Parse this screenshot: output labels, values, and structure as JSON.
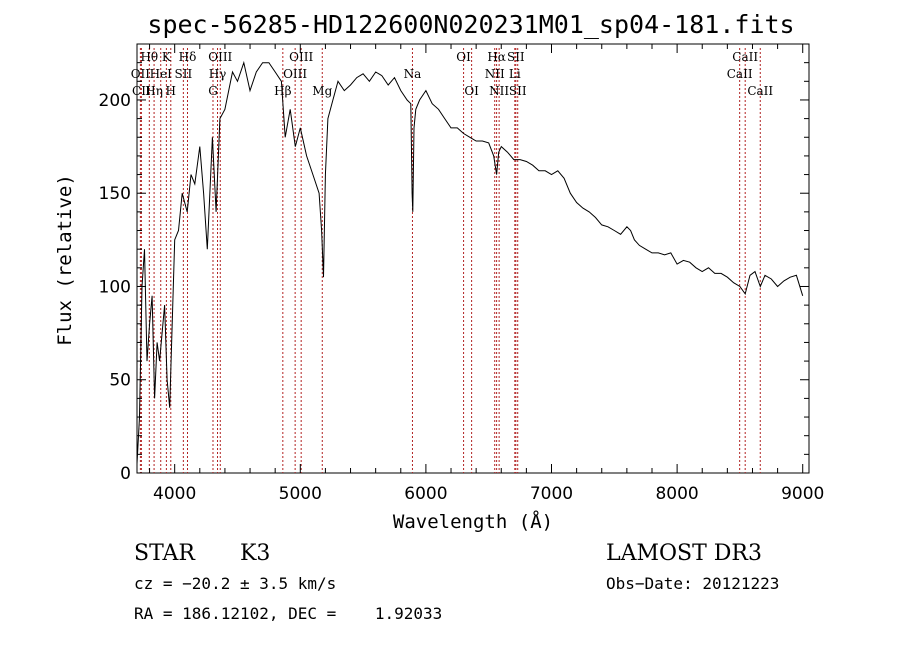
{
  "chart_data": {
    "type": "line",
    "title": "spec-56285-HD122600N020231M01_sp04-181.fits",
    "xlabel": "Wavelength (Å)",
    "ylabel": "Flux (relative)",
    "xlim": [
      3700,
      9050
    ],
    "ylim": [
      0,
      230
    ],
    "xticks": [
      "4000",
      "5000",
      "6000",
      "7000",
      "8000",
      "9000"
    ],
    "yticks": [
      "0",
      "50",
      "100",
      "150",
      "200"
    ],
    "series": [
      {
        "x": [
          3700,
          3720,
          3740,
          3760,
          3780,
          3800,
          3820,
          3840,
          3860,
          3880,
          3900,
          3920,
          3940,
          3960,
          3980,
          4000,
          4030,
          4060,
          4100,
          4130,
          4160,
          4200,
          4230,
          4260,
          4300,
          4330,
          4360,
          4400,
          4430,
          4460,
          4500,
          4550,
          4600,
          4650,
          4700,
          4750,
          4800,
          4850,
          4880,
          4920,
          4960,
          5000,
          5050,
          5100,
          5150,
          5170,
          5185,
          5200,
          5220,
          5260,
          5300,
          5350,
          5400,
          5450,
          5500,
          5550,
          5600,
          5650,
          5700,
          5750,
          5800,
          5850,
          5880,
          5890,
          5896,
          5905,
          5920,
          5950,
          6000,
          6050,
          6100,
          6150,
          6200,
          6250,
          6300,
          6350,
          6400,
          6450,
          6500,
          6540,
          6563,
          6580,
          6600,
          6650,
          6700,
          6750,
          6800,
          6850,
          6900,
          6950,
          7000,
          7050,
          7100,
          7150,
          7200,
          7250,
          7300,
          7350,
          7400,
          7450,
          7500,
          7550,
          7600,
          7630,
          7660,
          7700,
          7750,
          7800,
          7850,
          7900,
          7950,
          8000,
          8050,
          8100,
          8150,
          8200,
          8250,
          8300,
          8350,
          8400,
          8450,
          8500,
          8542,
          8580,
          8620,
          8662,
          8700,
          8750,
          8800,
          8850,
          8900,
          8950,
          9000
        ],
        "y": [
          5,
          30,
          100,
          120,
          60,
          80,
          95,
          40,
          70,
          60,
          75,
          90,
          50,
          35,
          80,
          125,
          130,
          150,
          140,
          160,
          155,
          175,
          150,
          120,
          180,
          140,
          190,
          195,
          205,
          215,
          210,
          220,
          205,
          215,
          220,
          220,
          215,
          210,
          180,
          195,
          175,
          185,
          170,
          160,
          150,
          130,
          105,
          160,
          190,
          200,
          210,
          205,
          208,
          212,
          214,
          210,
          215,
          213,
          208,
          212,
          205,
          200,
          198,
          150,
          140,
          185,
          195,
          200,
          205,
          198,
          195,
          190,
          185,
          185,
          182,
          180,
          178,
          178,
          177,
          170,
          160,
          172,
          175,
          172,
          168,
          168,
          167,
          165,
          162,
          162,
          160,
          162,
          158,
          150,
          145,
          142,
          140,
          137,
          133,
          132,
          130,
          128,
          132,
          130,
          125,
          122,
          120,
          118,
          118,
          117,
          118,
          112,
          114,
          113,
          110,
          108,
          110,
          107,
          107,
          105,
          102,
          100,
          96,
          106,
          108,
          100,
          106,
          104,
          100,
          103,
          105,
          106,
          95
        ]
      }
    ],
    "lines": [
      {
        "name": "Hθ",
        "x": 3798,
        "row": 1
      },
      {
        "name": "OII",
        "x": 3727,
        "row": 2
      },
      {
        "name": "CII",
        "x": 3735,
        "row": 3
      },
      {
        "name": "Hη",
        "x": 3836,
        "row": 3
      },
      {
        "name": "K",
        "x": 3934,
        "row": 1
      },
      {
        "name": "H",
        "x": 3969,
        "row": 3
      },
      {
        "name": "HeI",
        "x": 3889,
        "row": 2
      },
      {
        "name": "SII",
        "x": 4069,
        "row": 2
      },
      {
        "name": "Hδ",
        "x": 4102,
        "row": 1
      },
      {
        "name": "OIII",
        "x": 4363,
        "row": 1
      },
      {
        "name": "Hγ",
        "x": 4341,
        "row": 2
      },
      {
        "name": "G",
        "x": 4305,
        "row": 3
      },
      {
        "name": "OIII",
        "x": 5007,
        "row": 1
      },
      {
        "name": "OIII",
        "x": 4959,
        "row": 2
      },
      {
        "name": "Hβ",
        "x": 4861,
        "row": 3
      },
      {
        "name": "Mg",
        "x": 5175,
        "row": 3
      },
      {
        "name": "Na",
        "x": 5893,
        "row": 2
      },
      {
        "name": "OI",
        "x": 6300,
        "row": 1
      },
      {
        "name": "OI",
        "x": 6364,
        "row": 3
      },
      {
        "name": "Hα",
        "x": 6563,
        "row": 1
      },
      {
        "name": "SII",
        "x": 6716,
        "row": 1
      },
      {
        "name": "NII",
        "x": 6548,
        "row": 2
      },
      {
        "name": "Li",
        "x": 6708,
        "row": 2
      },
      {
        "name": "NII",
        "x": 6583,
        "row": 3
      },
      {
        "name": "SII",
        "x": 6731,
        "row": 3
      },
      {
        "name": "CaII",
        "x": 8542,
        "row": 1
      },
      {
        "name": "CaII",
        "x": 8498,
        "row": 2
      },
      {
        "name": "CaII",
        "x": 8662,
        "row": 3
      }
    ],
    "grid": false,
    "line_color": "#000000",
    "marker_color": "#b22222"
  },
  "info": {
    "class": "STAR",
    "subclass": "K3",
    "cz": "cz = −20.2 ± 3.5 km/s",
    "radec": "RA = 186.12102, DEC =    1.92033",
    "survey": "LAMOST DR3",
    "obsdate": "Obs−Date: 20121223"
  }
}
